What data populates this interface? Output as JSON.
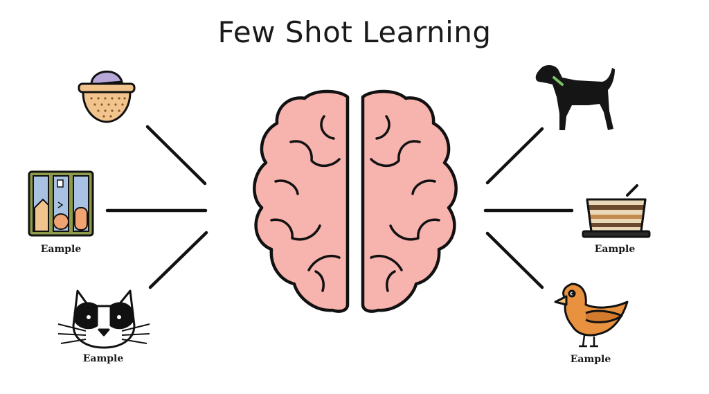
{
  "title": "Few Shot Learning",
  "labels": {
    "left_middle": "Eample",
    "left_bottom": "Eample",
    "right_middle": "Eample",
    "right_bottom": "Eample"
  }
}
